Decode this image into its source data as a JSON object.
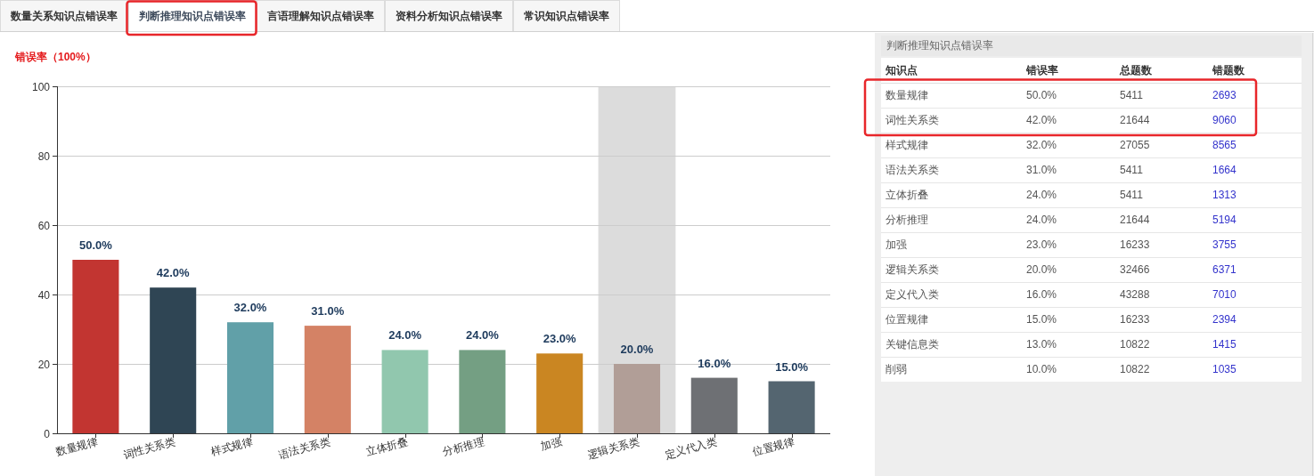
{
  "chart_data": [
    {
      "type": "other",
      "annotations": [
        "数量关系知识点错误率",
        "判断推理知识点错误率",
        "言语理解知识点错误率",
        "资料分析知识点错误率",
        "常识知识点错误率"
      ]
    },
    {
      "type": "bar",
      "ylabel": "错误率（100%）",
      "categories": [
        "数量规律",
        "词性关系类",
        "样式规律",
        "语法关系类",
        "立体折叠",
        "分析推理",
        "加强",
        "逻辑关系类",
        "定义代入类",
        "位置规律"
      ],
      "values": [
        50,
        42,
        32,
        31,
        24,
        24,
        23,
        20,
        16,
        15
      ],
      "colors": [
        "#c23531",
        "#2f4554",
        "#61a0a8",
        "#d48265",
        "#91c7ae",
        "#749f83",
        "#ca8622",
        "#b19e97",
        "#6e7074",
        "#546570"
      ],
      "value_labels": [
        "50.0%",
        "42.0%",
        "32.0%",
        "31.0%",
        "24.0%",
        "24.0%",
        "23.0%",
        "20.0%",
        "16.0%",
        "15.0%"
      ],
      "ylim": [
        0,
        100
      ],
      "yticks": [
        0,
        20,
        40,
        60,
        80,
        100
      ],
      "grid": "y",
      "bands": [
        {
          "axis": "x",
          "from": "逻辑关系类",
          "to": "逻辑关系类",
          "color": "#dcdcdc"
        }
      ]
    },
    {
      "type": "other",
      "title": "判断推理知识点错误率",
      "annotations": [
        "知识点",
        "错误率",
        "总题数",
        "错题数",
        "数量规律",
        "50.0%",
        "5411",
        "2693",
        "词性关系类",
        "42.0%",
        "21644",
        "9060",
        "样式规律",
        "32.0%",
        "27055",
        "8565",
        "语法关系类",
        "31.0%",
        "5411",
        "1664",
        "立体折叠",
        "24.0%",
        "5411",
        "1313",
        "分析推理",
        "24.0%",
        "21644",
        "5194",
        "加强",
        "23.0%",
        "16233",
        "3755",
        "逻辑关系类",
        "20.0%",
        "32466",
        "6371",
        "定义代入类",
        "16.0%",
        "43288",
        "7010",
        "位置规律",
        "15.0%",
        "16233",
        "2394",
        "关键信息类",
        "13.0%",
        "10822",
        "1415",
        "削弱",
        "10.0%",
        "10822",
        "1035"
      ]
    }
  ]
}
